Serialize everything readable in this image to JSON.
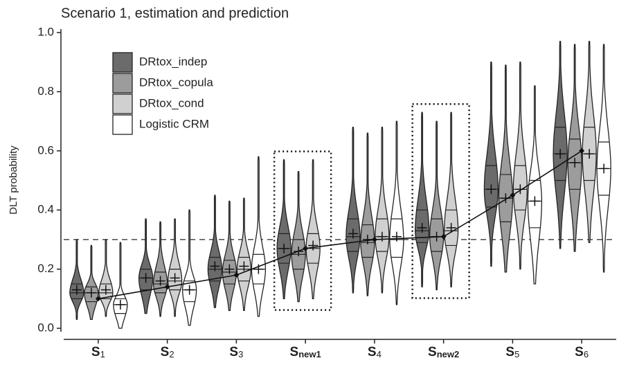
{
  "chart_data": {
    "type": "violin",
    "title": "Scenario 1, estimation and prediction",
    "y_label": "DLT probability",
    "categories": [
      {
        "label": "S",
        "sub": "1"
      },
      {
        "label": "S",
        "sub": "2"
      },
      {
        "label": "S",
        "sub": "3"
      },
      {
        "label": "S",
        "sub": "new1"
      },
      {
        "label": "S",
        "sub": "4"
      },
      {
        "label": "S",
        "sub": "new2"
      },
      {
        "label": "S",
        "sub": "5"
      },
      {
        "label": "S",
        "sub": "6"
      }
    ],
    "ylim": [
      0,
      1
    ],
    "yticks": [
      {
        "value": 0,
        "label": "0.0"
      },
      {
        "value": 0.2,
        "label": "0.2"
      },
      {
        "value": 0.4,
        "label": "0.4"
      },
      {
        "value": 0.6,
        "label": "0.6"
      },
      {
        "value": 0.8,
        "label": "0.8"
      },
      {
        "value": 1,
        "label": "1.0"
      }
    ],
    "reference_line": 0.3,
    "highlighted": [
      3,
      5
    ],
    "series": [
      {
        "name": "DRtox_indep",
        "color": "#6b6b6b",
        "min": [
          0.03,
          0.05,
          0.07,
          0.1,
          0.12,
          0.14,
          0.21,
          0.27
        ],
        "q1": [
          0.1,
          0.13,
          0.16,
          0.22,
          0.26,
          0.29,
          0.41,
          0.5
        ],
        "median": [
          0.12,
          0.17,
          0.2,
          0.27,
          0.31,
          0.33,
          0.47,
          0.59
        ],
        "q3": [
          0.15,
          0.2,
          0.24,
          0.32,
          0.37,
          0.4,
          0.55,
          0.68
        ],
        "max": [
          0.3,
          0.37,
          0.45,
          0.57,
          0.68,
          0.73,
          0.9,
          0.97
        ],
        "mean": [
          0.13,
          0.17,
          0.21,
          0.27,
          0.32,
          0.34,
          0.47,
          0.59
        ]
      },
      {
        "name": "DRtox_copula",
        "color": "#9c9c9c",
        "min": [
          0.03,
          0.04,
          0.06,
          0.09,
          0.11,
          0.13,
          0.19,
          0.26
        ],
        "q1": [
          0.09,
          0.12,
          0.15,
          0.2,
          0.24,
          0.26,
          0.36,
          0.47
        ],
        "median": [
          0.12,
          0.15,
          0.19,
          0.25,
          0.29,
          0.31,
          0.44,
          0.56
        ],
        "q3": [
          0.14,
          0.19,
          0.23,
          0.3,
          0.35,
          0.37,
          0.52,
          0.64
        ],
        "max": [
          0.28,
          0.36,
          0.43,
          0.53,
          0.66,
          0.7,
          0.89,
          0.96
        ],
        "mean": [
          0.12,
          0.16,
          0.2,
          0.26,
          0.3,
          0.31,
          0.44,
          0.56
        ]
      },
      {
        "name": "DRtox_cond",
        "color": "#d0d0d0",
        "min": [
          0.04,
          0.04,
          0.06,
          0.1,
          0.12,
          0.14,
          0.2,
          0.29
        ],
        "q1": [
          0.1,
          0.13,
          0.16,
          0.22,
          0.26,
          0.28,
          0.4,
          0.5
        ],
        "median": [
          0.12,
          0.16,
          0.2,
          0.27,
          0.31,
          0.33,
          0.47,
          0.59
        ],
        "q3": [
          0.15,
          0.2,
          0.24,
          0.32,
          0.37,
          0.4,
          0.55,
          0.68
        ],
        "max": [
          0.3,
          0.37,
          0.44,
          0.57,
          0.68,
          0.73,
          0.9,
          0.97
        ],
        "mean": [
          0.13,
          0.17,
          0.21,
          0.28,
          0.31,
          0.34,
          0.47,
          0.59
        ]
      },
      {
        "name": "Logistic CRM",
        "color": "#ffffff",
        "min": [
          0.0,
          0.01,
          0.04,
          null,
          0.08,
          null,
          0.15,
          0.19
        ],
        "q1": [
          0.05,
          0.09,
          0.15,
          null,
          0.24,
          null,
          0.34,
          0.45
        ],
        "median": [
          0.08,
          0.13,
          0.2,
          null,
          0.3,
          null,
          0.43,
          0.54
        ],
        "q3": [
          0.1,
          0.16,
          0.25,
          null,
          0.37,
          null,
          0.5,
          0.63
        ],
        "max": [
          0.29,
          0.4,
          0.58,
          null,
          0.7,
          null,
          0.82,
          0.96
        ],
        "mean": [
          0.08,
          0.13,
          0.2,
          null,
          0.31,
          null,
          0.43,
          0.54
        ]
      }
    ],
    "true_probability": {
      "color": "#111111",
      "values": [
        0.1,
        0.14,
        0.18,
        0.27,
        0.3,
        0.31,
        0.45,
        0.6
      ]
    }
  }
}
